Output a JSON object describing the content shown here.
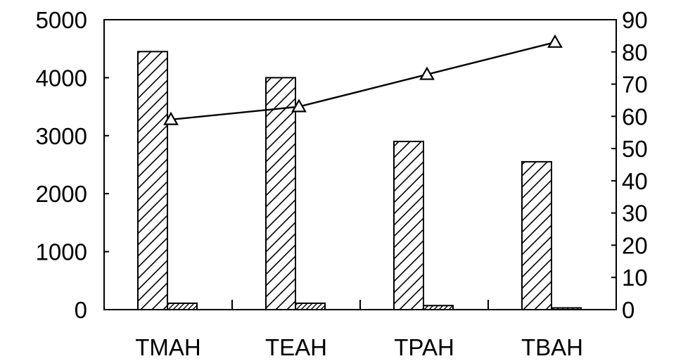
{
  "chart_data": {
    "type": "bar",
    "title": "",
    "xlabel": "",
    "ylabel": "",
    "y2label": "",
    "categories": [
      "TMAH",
      "TEAH",
      "TPAH",
      "TBAH"
    ],
    "ylim": [
      0,
      5000
    ],
    "y_ticks": [
      "0",
      "1000",
      "2000",
      "3000",
      "4000",
      "5000"
    ],
    "y2lim": [
      0,
      90
    ],
    "y2_ticks": [
      "0",
      "10",
      "20",
      "30",
      "40",
      "50",
      "60",
      "70",
      "80",
      "90"
    ],
    "series": [
      {
        "kind": "bar",
        "axis": "left",
        "pattern": "diagonal-hatch",
        "values": [
          4450,
          4000,
          2900,
          2550
        ]
      },
      {
        "kind": "bar",
        "axis": "left",
        "pattern": "diagonal-hatch",
        "values": [
          110,
          110,
          70,
          30
        ]
      },
      {
        "kind": "line",
        "axis": "right",
        "marker": "triangle-open",
        "values": [
          59,
          63,
          73,
          83
        ]
      }
    ],
    "grid": false,
    "legend": "none",
    "colors": {
      "ink": "#000000",
      "background": "#ffffff"
    }
  }
}
